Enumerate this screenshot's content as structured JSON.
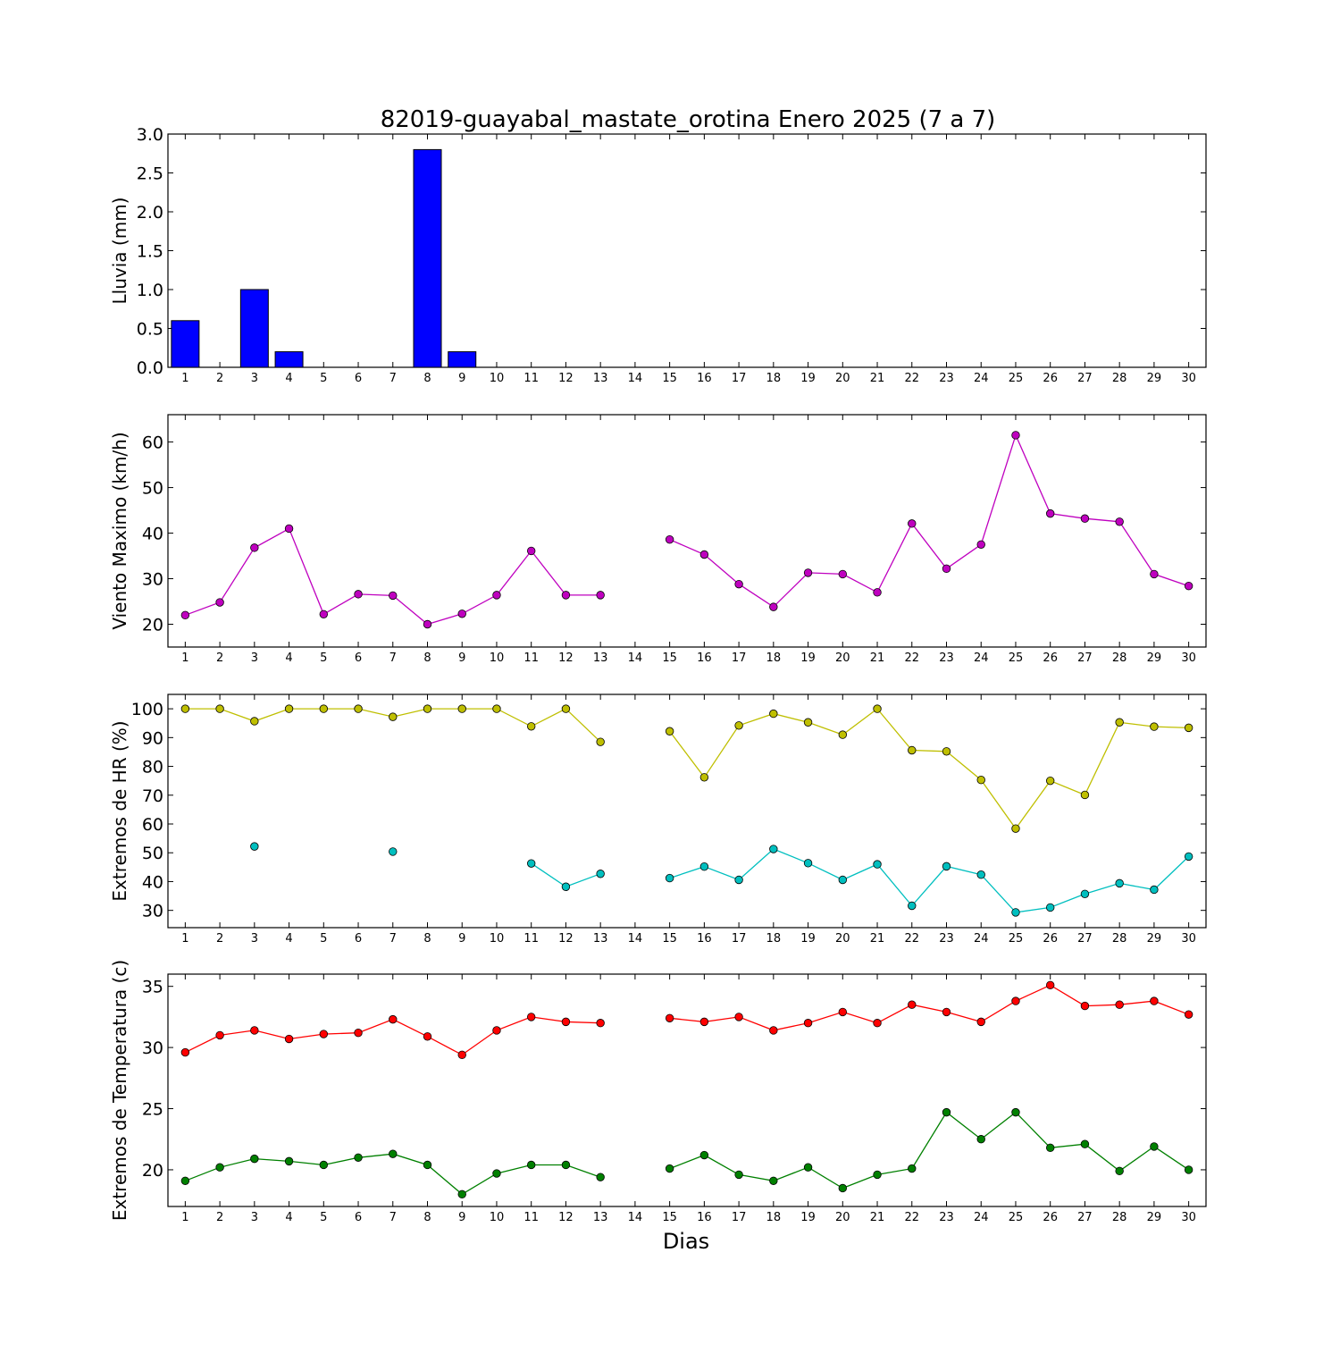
{
  "figure": {
    "title": "82019-guayabal_mastate_orotina Enero 2025  (7 a 7)",
    "xlabel": "Dias"
  },
  "chart_data": [
    {
      "type": "bar",
      "ylabel": "Lluvia (mm)",
      "ylim": [
        0,
        3.0
      ],
      "yticks": [
        "0.0",
        "0.5",
        "1.0",
        "1.5",
        "2.0",
        "2.5",
        "3.0"
      ],
      "xlim": [
        0.5,
        30.5
      ],
      "categories": [
        1,
        2,
        3,
        4,
        5,
        6,
        7,
        8,
        9,
        10,
        11,
        12,
        13,
        14,
        15,
        16,
        17,
        18,
        19,
        20,
        21,
        22,
        23,
        24,
        25,
        26,
        27,
        28,
        29,
        30
      ],
      "series": [
        {
          "color": "#0000ff",
          "values": [
            0.6,
            0,
            1.0,
            0.2,
            0,
            0,
            0,
            2.8,
            0.2,
            0,
            0,
            0,
            0,
            0,
            0,
            0,
            0,
            0,
            0,
            0,
            0,
            0,
            0,
            0,
            0,
            0,
            0,
            0,
            0,
            0
          ]
        }
      ]
    },
    {
      "type": "line",
      "ylabel": "Viento Maximo (km/h)",
      "ylim": [
        15,
        66
      ],
      "yticks": [
        "20",
        "30",
        "40",
        "50",
        "60"
      ],
      "xlim": [
        0.5,
        30.5
      ],
      "x": [
        1,
        2,
        3,
        4,
        5,
        6,
        7,
        8,
        9,
        10,
        11,
        12,
        13,
        14,
        15,
        16,
        17,
        18,
        19,
        20,
        21,
        22,
        23,
        24,
        25,
        26,
        27,
        28,
        29,
        30
      ],
      "series": [
        {
          "color": "#bf00bf",
          "values": [
            22,
            24.8,
            36.8,
            41,
            22.2,
            26.6,
            26.3,
            20,
            22.3,
            26.4,
            36.1,
            26.4,
            26.4,
            null,
            38.6,
            35.3,
            28.8,
            23.8,
            31.3,
            31,
            27,
            42.1,
            32.2,
            37.5,
            61.5,
            44.3,
            43.2,
            42.5,
            31,
            28.4
          ]
        }
      ]
    },
    {
      "type": "line",
      "ylabel": "Extremos de HR (%)",
      "ylim": [
        24,
        105
      ],
      "yticks": [
        "30",
        "40",
        "50",
        "60",
        "70",
        "80",
        "90",
        "100"
      ],
      "xlim": [
        0.5,
        30.5
      ],
      "x": [
        1,
        2,
        3,
        4,
        5,
        6,
        7,
        8,
        9,
        10,
        11,
        12,
        13,
        14,
        15,
        16,
        17,
        18,
        19,
        20,
        21,
        22,
        23,
        24,
        25,
        26,
        27,
        28,
        29,
        30
      ],
      "series": [
        {
          "color": "#bfbf00",
          "values": [
            100,
            100,
            95.7,
            100,
            100,
            100,
            97.2,
            100,
            100,
            100,
            93.9,
            100,
            88.5,
            null,
            92.2,
            76.2,
            94.2,
            98.3,
            95.3,
            91,
            100,
            85.6,
            85.2,
            75.3,
            58.4,
            75,
            70.1,
            95.3,
            93.8,
            93.4
          ]
        },
        {
          "color": "#00bfbf",
          "values": [
            null,
            null,
            52.2,
            null,
            null,
            null,
            50.4,
            null,
            null,
            null,
            46.3,
            38.2,
            42.7,
            null,
            41.2,
            45.2,
            40.6,
            51.3,
            46.4,
            40.6,
            46,
            31.6,
            45.3,
            42.4,
            29.3,
            31,
            35.7,
            39.4,
            37.2,
            48.7
          ]
        }
      ]
    },
    {
      "type": "line",
      "ylabel": "Extremos de Temperatura (c)",
      "ylim": [
        17,
        36
      ],
      "yticks": [
        "20",
        "25",
        "30",
        "35"
      ],
      "xlim": [
        0.5,
        30.5
      ],
      "x": [
        1,
        2,
        3,
        4,
        5,
        6,
        7,
        8,
        9,
        10,
        11,
        12,
        13,
        14,
        15,
        16,
        17,
        18,
        19,
        20,
        21,
        22,
        23,
        24,
        25,
        26,
        27,
        28,
        29,
        30
      ],
      "xtick_labels": [
        "1",
        "2",
        "3",
        "4",
        "5",
        "6",
        "7",
        "8",
        "9",
        "10",
        "11",
        "12",
        "13",
        "14",
        "15",
        "16",
        "17",
        "18",
        "19",
        "20",
        "21",
        "22",
        "23",
        "24",
        "25",
        "26",
        "27",
        "28",
        "29",
        "30"
      ],
      "series": [
        {
          "color": "#ff0000",
          "values": [
            29.6,
            31,
            31.4,
            30.7,
            31.1,
            31.2,
            32.3,
            30.9,
            29.4,
            31.4,
            32.5,
            32.1,
            32,
            null,
            32.4,
            32.1,
            32.5,
            31.4,
            32,
            32.9,
            32,
            33.5,
            32.9,
            32.1,
            33.8,
            35.1,
            33.4,
            33.5,
            33.8,
            32.7
          ]
        },
        {
          "color": "#008000",
          "values": [
            19.1,
            20.2,
            20.9,
            20.7,
            20.4,
            21,
            21.3,
            20.4,
            18,
            19.7,
            20.4,
            20.4,
            19.4,
            null,
            20.1,
            21.2,
            19.6,
            19.1,
            20.2,
            18.5,
            19.6,
            20.1,
            24.7,
            22.5,
            24.7,
            21.8,
            22.1,
            19.9,
            21.9,
            20
          ]
        }
      ]
    }
  ]
}
